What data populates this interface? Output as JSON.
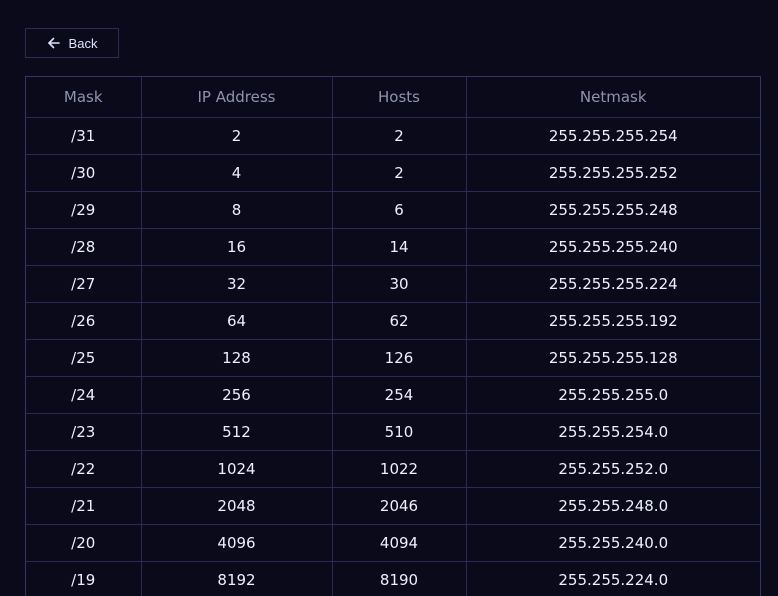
{
  "back": {
    "label": "Back",
    "icon": "arrow-left-icon"
  },
  "table": {
    "headers": [
      "Mask",
      "IP Address",
      "Hosts",
      "Netmask"
    ],
    "rows": [
      [
        "/31",
        "2",
        "2",
        "255.255.255.254"
      ],
      [
        "/30",
        "4",
        "2",
        "255.255.255.252"
      ],
      [
        "/29",
        "8",
        "6",
        "255.255.255.248"
      ],
      [
        "/28",
        "16",
        "14",
        "255.255.255.240"
      ],
      [
        "/27",
        "32",
        "30",
        "255.255.255.224"
      ],
      [
        "/26",
        "64",
        "62",
        "255.255.255.192"
      ],
      [
        "/25",
        "128",
        "126",
        "255.255.255.128"
      ],
      [
        "/24",
        "256",
        "254",
        "255.255.255.0"
      ],
      [
        "/23",
        "512",
        "510",
        "255.255.254.0"
      ],
      [
        "/22",
        "1024",
        "1022",
        "255.255.252.0"
      ],
      [
        "/21",
        "2048",
        "2046",
        "255.255.248.0"
      ],
      [
        "/20",
        "4096",
        "4094",
        "255.255.240.0"
      ],
      [
        "/19",
        "8192",
        "8190",
        "255.255.224.0"
      ]
    ]
  },
  "colors": {
    "background": "#0a0a1a",
    "border": "#2a2a55",
    "header_text": "#8f93b0",
    "cell_text": "#eef0fb"
  }
}
